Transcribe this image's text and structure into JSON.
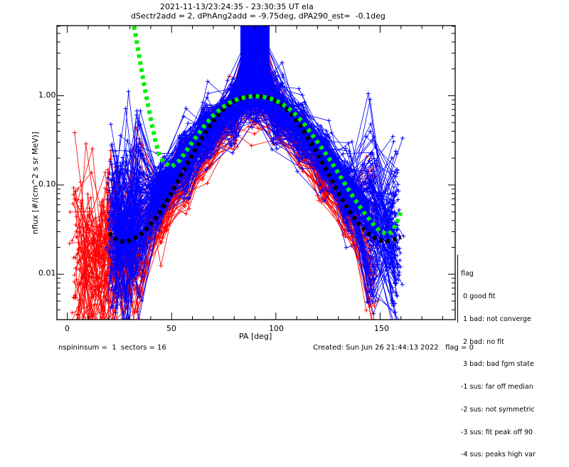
{
  "header": {
    "title_line1": "2021-11-13/23:24:35 - 23:30:35 UT ela",
    "title_line2": "dSectr2add = 2, dPhAng2add = -9.75deg, dPA290_est=  -0.1deg"
  },
  "footer": {
    "left": "nspininsum =  1  sectors = 16",
    "right": "Created: Sun Jun 26 21:44:13 2022   flag = 0"
  },
  "legend": {
    "title": "flag",
    "items": [
      " 0 good fit",
      " 1 bad: not converge",
      " 2 bad: no fit",
      " 3 bad: bad fgm state",
      "-1 sus: far off median",
      "-2 sus: not symmetric",
      "-3 sus: fit peak off 90",
      "-4 sus: peaks high var"
    ]
  },
  "colors": {
    "blue": "#0000ff",
    "red": "#ff0000",
    "green": "#00ee00",
    "black": "#000000"
  },
  "chart_data": {
    "type": "line",
    "title": "2021-11-13/23:24:35 - 23:30:35 UT ela",
    "xlabel": "PA [deg]",
    "ylabel": "nflux [#/(cm^2 s sr MeV)]",
    "xlim": [
      -5,
      186
    ],
    "ylim": [
      0.0031,
      6.1
    ],
    "yscale": "log",
    "xticks": [
      0,
      50,
      100,
      150
    ],
    "xtick_labels": [
      "0",
      "50",
      "100",
      "150"
    ],
    "yticks": [
      0.01,
      0.1,
      1.0
    ],
    "ytick_labels": [
      "0.01",
      "0.10",
      "1.00"
    ],
    "grid": false,
    "series": [
      {
        "name": "fit (black dotted)",
        "color": "black",
        "x": [
          20,
          24,
          28,
          32,
          36,
          40,
          44,
          48,
          52,
          56,
          60,
          64,
          68,
          72,
          76,
          80,
          84,
          88,
          92,
          96,
          100,
          104,
          108,
          112,
          116,
          120,
          124,
          128,
          132,
          136,
          140,
          144,
          148,
          152,
          156,
          160
        ],
        "y": [
          0.029,
          0.024,
          0.023,
          0.025,
          0.029,
          0.036,
          0.048,
          0.068,
          0.1,
          0.15,
          0.22,
          0.32,
          0.45,
          0.6,
          0.75,
          0.87,
          0.95,
          0.99,
          0.99,
          0.95,
          0.87,
          0.75,
          0.6,
          0.45,
          0.32,
          0.22,
          0.15,
          0.1,
          0.068,
          0.048,
          0.036,
          0.029,
          0.025,
          0.023,
          0.024,
          0.026
        ]
      },
      {
        "name": "fit (green dashed)",
        "color": "green",
        "x": [
          32,
          34,
          36,
          38,
          40,
          42,
          44,
          46,
          48,
          50,
          54,
          58,
          62,
          66,
          70,
          74,
          78,
          82,
          86,
          90,
          94,
          98,
          102,
          106,
          110,
          114,
          118,
          122,
          126,
          130,
          134,
          138,
          142,
          146,
          150,
          154,
          156,
          158,
          160
        ],
        "y": [
          6.0,
          3.2,
          1.7,
          0.95,
          0.55,
          0.33,
          0.22,
          0.18,
          0.17,
          0.16,
          0.19,
          0.26,
          0.35,
          0.47,
          0.6,
          0.73,
          0.84,
          0.92,
          0.97,
          0.99,
          0.97,
          0.92,
          0.84,
          0.73,
          0.6,
          0.47,
          0.35,
          0.26,
          0.19,
          0.135,
          0.095,
          0.068,
          0.05,
          0.038,
          0.03,
          0.028,
          0.031,
          0.038,
          0.05
        ]
      },
      {
        "name": "spectra (blue traces)",
        "color": "blue",
        "shape": "peaked at ~90 deg, ~1.0; pitch angle bins 22-157 deg; many traces"
      },
      {
        "name": "spectra (red traces)",
        "color": "red",
        "shape": "peaked at ~90 deg, ~0.8; pitch angle bins 5-150 deg; many traces"
      }
    ]
  }
}
